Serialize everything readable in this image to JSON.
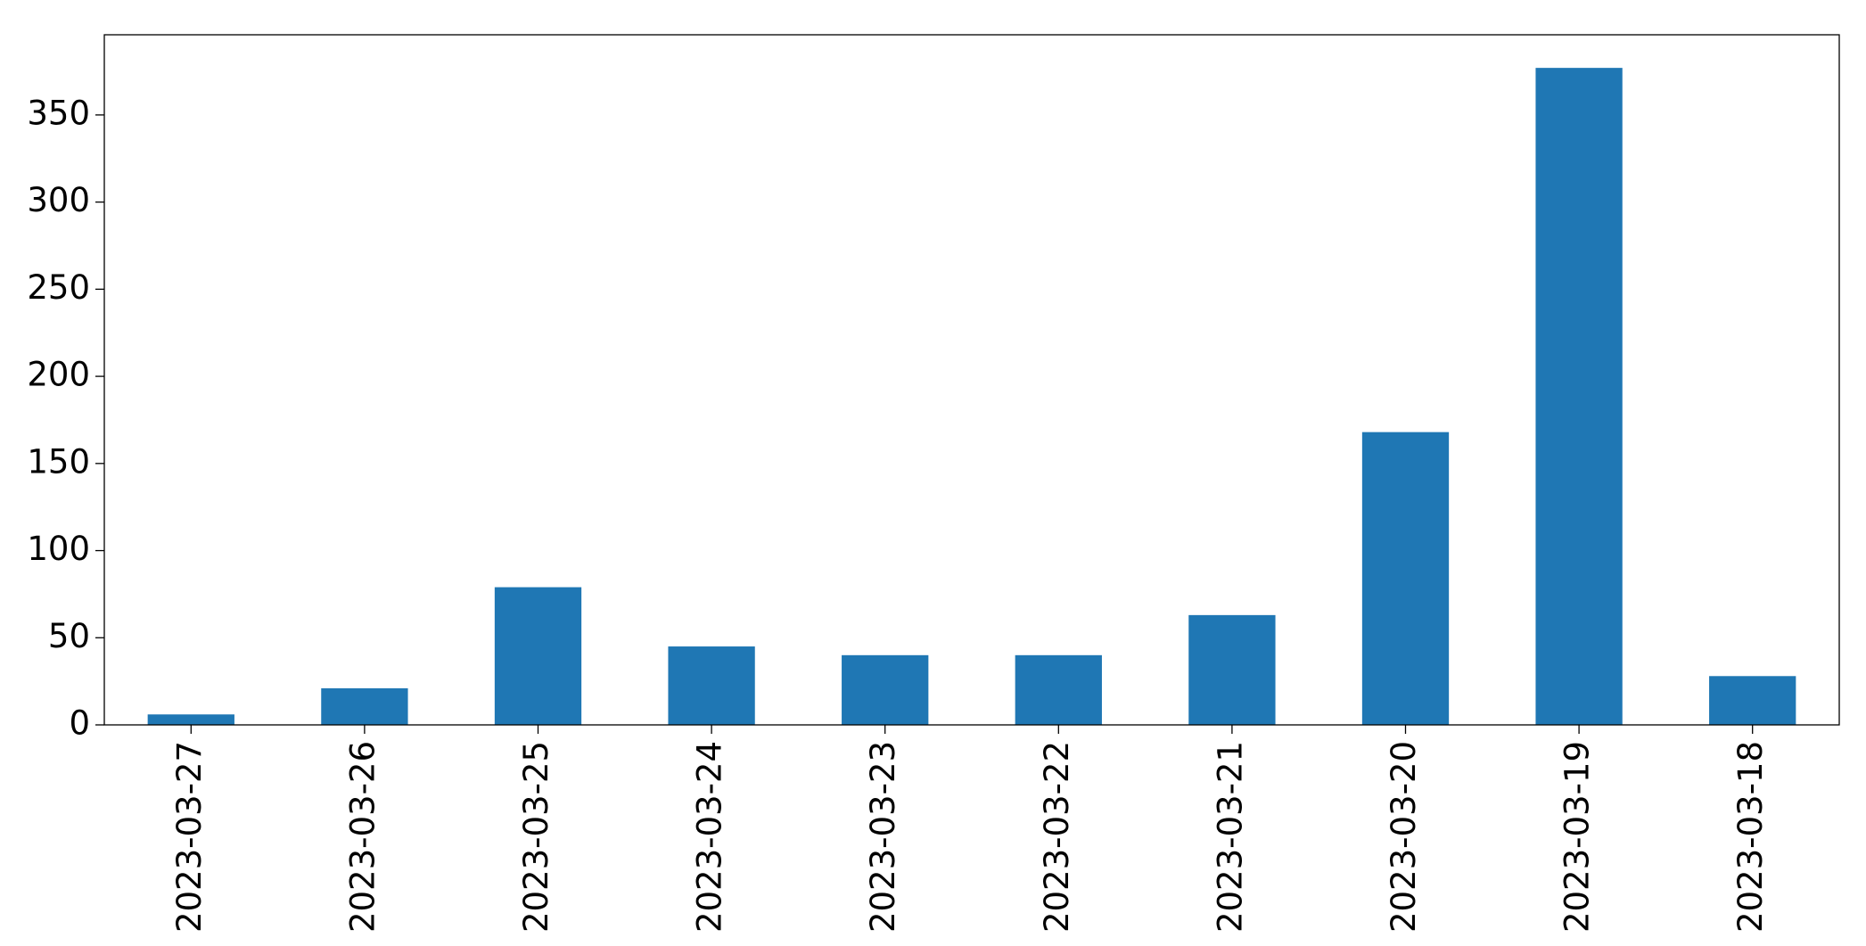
{
  "chart_data": {
    "type": "bar",
    "categories": [
      "2023-03-27",
      "2023-03-26",
      "2023-03-25",
      "2023-03-24",
      "2023-03-23",
      "2023-03-22",
      "2023-03-21",
      "2023-03-20",
      "2023-03-19",
      "2023-03-18"
    ],
    "values": [
      6,
      21,
      79,
      45,
      40,
      40,
      63,
      168,
      377,
      28
    ],
    "color": "#1f77b4",
    "ylim": [
      0,
      396
    ],
    "yticks": [
      0,
      50,
      100,
      150,
      200,
      250,
      300,
      350
    ],
    "grid": false
  }
}
